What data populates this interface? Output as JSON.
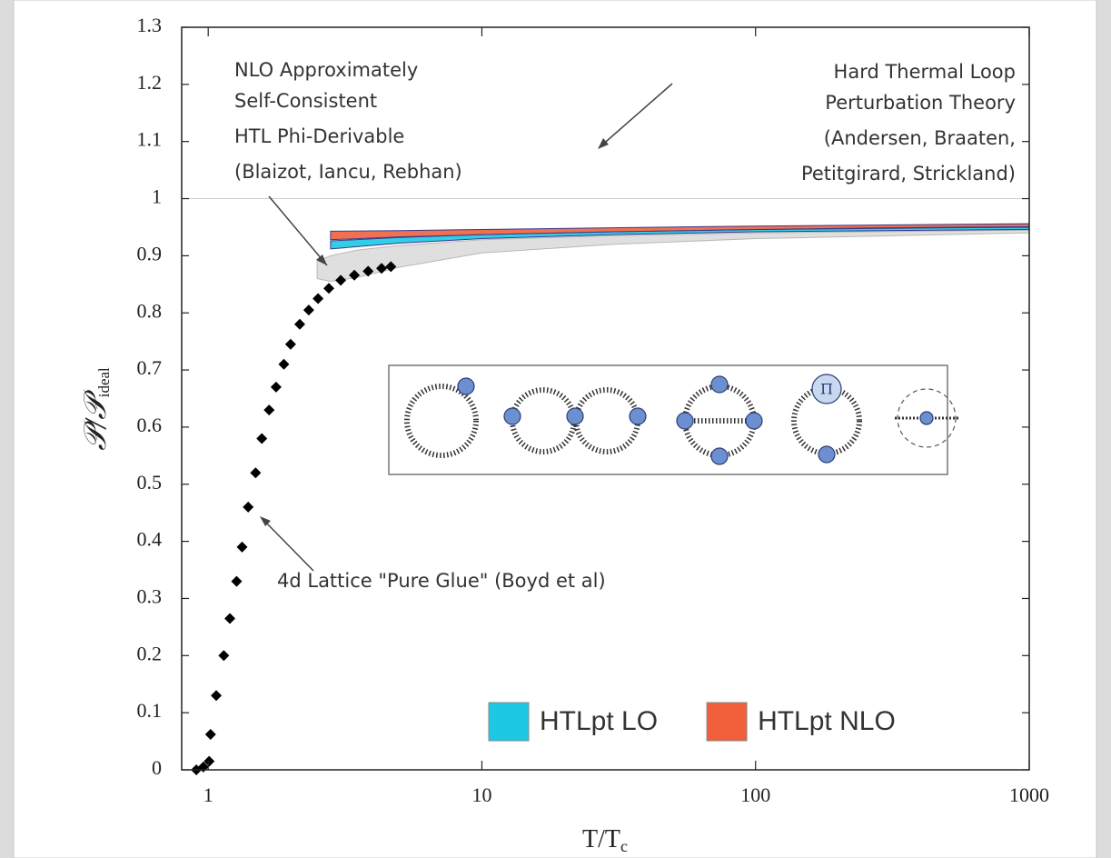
{
  "chart_data": {
    "type": "scatter",
    "xlabel": {
      "main": "T/T",
      "sub": "c"
    },
    "ylabel": {
      "main": "𝒫/𝒫",
      "sub": "ideal"
    },
    "xscale": "log",
    "xlim": [
      0.8,
      1000
    ],
    "ylim": [
      0,
      1.3
    ],
    "xticks": [
      1,
      10,
      100,
      1000
    ],
    "yticks": [
      0,
      0.1,
      0.2,
      0.3,
      0.4,
      0.5,
      0.6,
      0.7,
      0.8,
      0.9,
      1,
      1.1,
      1.2,
      1.3
    ],
    "reference_line": 1,
    "series": [
      {
        "kind": "points",
        "marker": "diamond",
        "color": "#000000",
        "x": [
          0.905,
          0.96,
          1.008,
          1.02,
          1.07,
          1.14,
          1.2,
          1.27,
          1.33,
          1.4,
          1.49,
          1.57,
          1.67,
          1.77,
          1.89,
          2.0,
          2.16,
          2.33,
          2.52,
          2.76,
          3.05,
          3.42,
          3.84,
          4.3,
          4.65
        ],
        "values": [
          0.0,
          0.005,
          0.015,
          0.062,
          0.13,
          0.2,
          0.265,
          0.33,
          0.39,
          0.46,
          0.52,
          0.58,
          0.63,
          0.67,
          0.71,
          0.745,
          0.78,
          0.805,
          0.825,
          0.843,
          0.857,
          0.866,
          0.873,
          0.878,
          0.881
        ]
      },
      {
        "kind": "band",
        "color": "#dcdcdc",
        "x": [
          2.5,
          2.8,
          3.5,
          5,
          10,
          30,
          100,
          1000
        ],
        "values": [
          0.86,
          0.855,
          0.862,
          0.88,
          0.905,
          0.92,
          0.93,
          0.94
        ],
        "upper": [
          0.89,
          0.9,
          0.91,
          0.918,
          0.928,
          0.935,
          0.94,
          0.945
        ]
      },
      {
        "kind": "band",
        "name": "HTLpt LO",
        "color": "#1cc8e4",
        "x": [
          2.8,
          5,
          10,
          30,
          100,
          300,
          1000
        ],
        "values": [
          0.912,
          0.922,
          0.93,
          0.937,
          0.942,
          0.944,
          0.946
        ],
        "upper": [
          0.926,
          0.932,
          0.937,
          0.942,
          0.946,
          0.948,
          0.95
        ]
      },
      {
        "kind": "band",
        "name": "HTLpt NLO",
        "color": "#f0603c",
        "x": [
          2.8,
          5,
          10,
          30,
          100,
          300,
          1000
        ],
        "values": [
          0.928,
          0.933,
          0.937,
          0.942,
          0.946,
          0.949,
          0.951
        ],
        "upper": [
          0.943,
          0.944,
          0.946,
          0.949,
          0.952,
          0.954,
          0.956
        ]
      }
    ],
    "annotations": [
      [
        "NLO Approximately",
        "Self-Consistent",
        "HTL Phi-Derivable",
        "(Blaizot, Iancu, Rebhan)"
      ],
      [
        "Hard Thermal Loop",
        "Perturbation Theory",
        "(Andersen, Braaten,",
        "Petitgirard, Strickland)"
      ],
      [
        "4d Lattice \"Pure Glue\" (Boyd et al)"
      ]
    ],
    "inset_label": "Π"
  }
}
